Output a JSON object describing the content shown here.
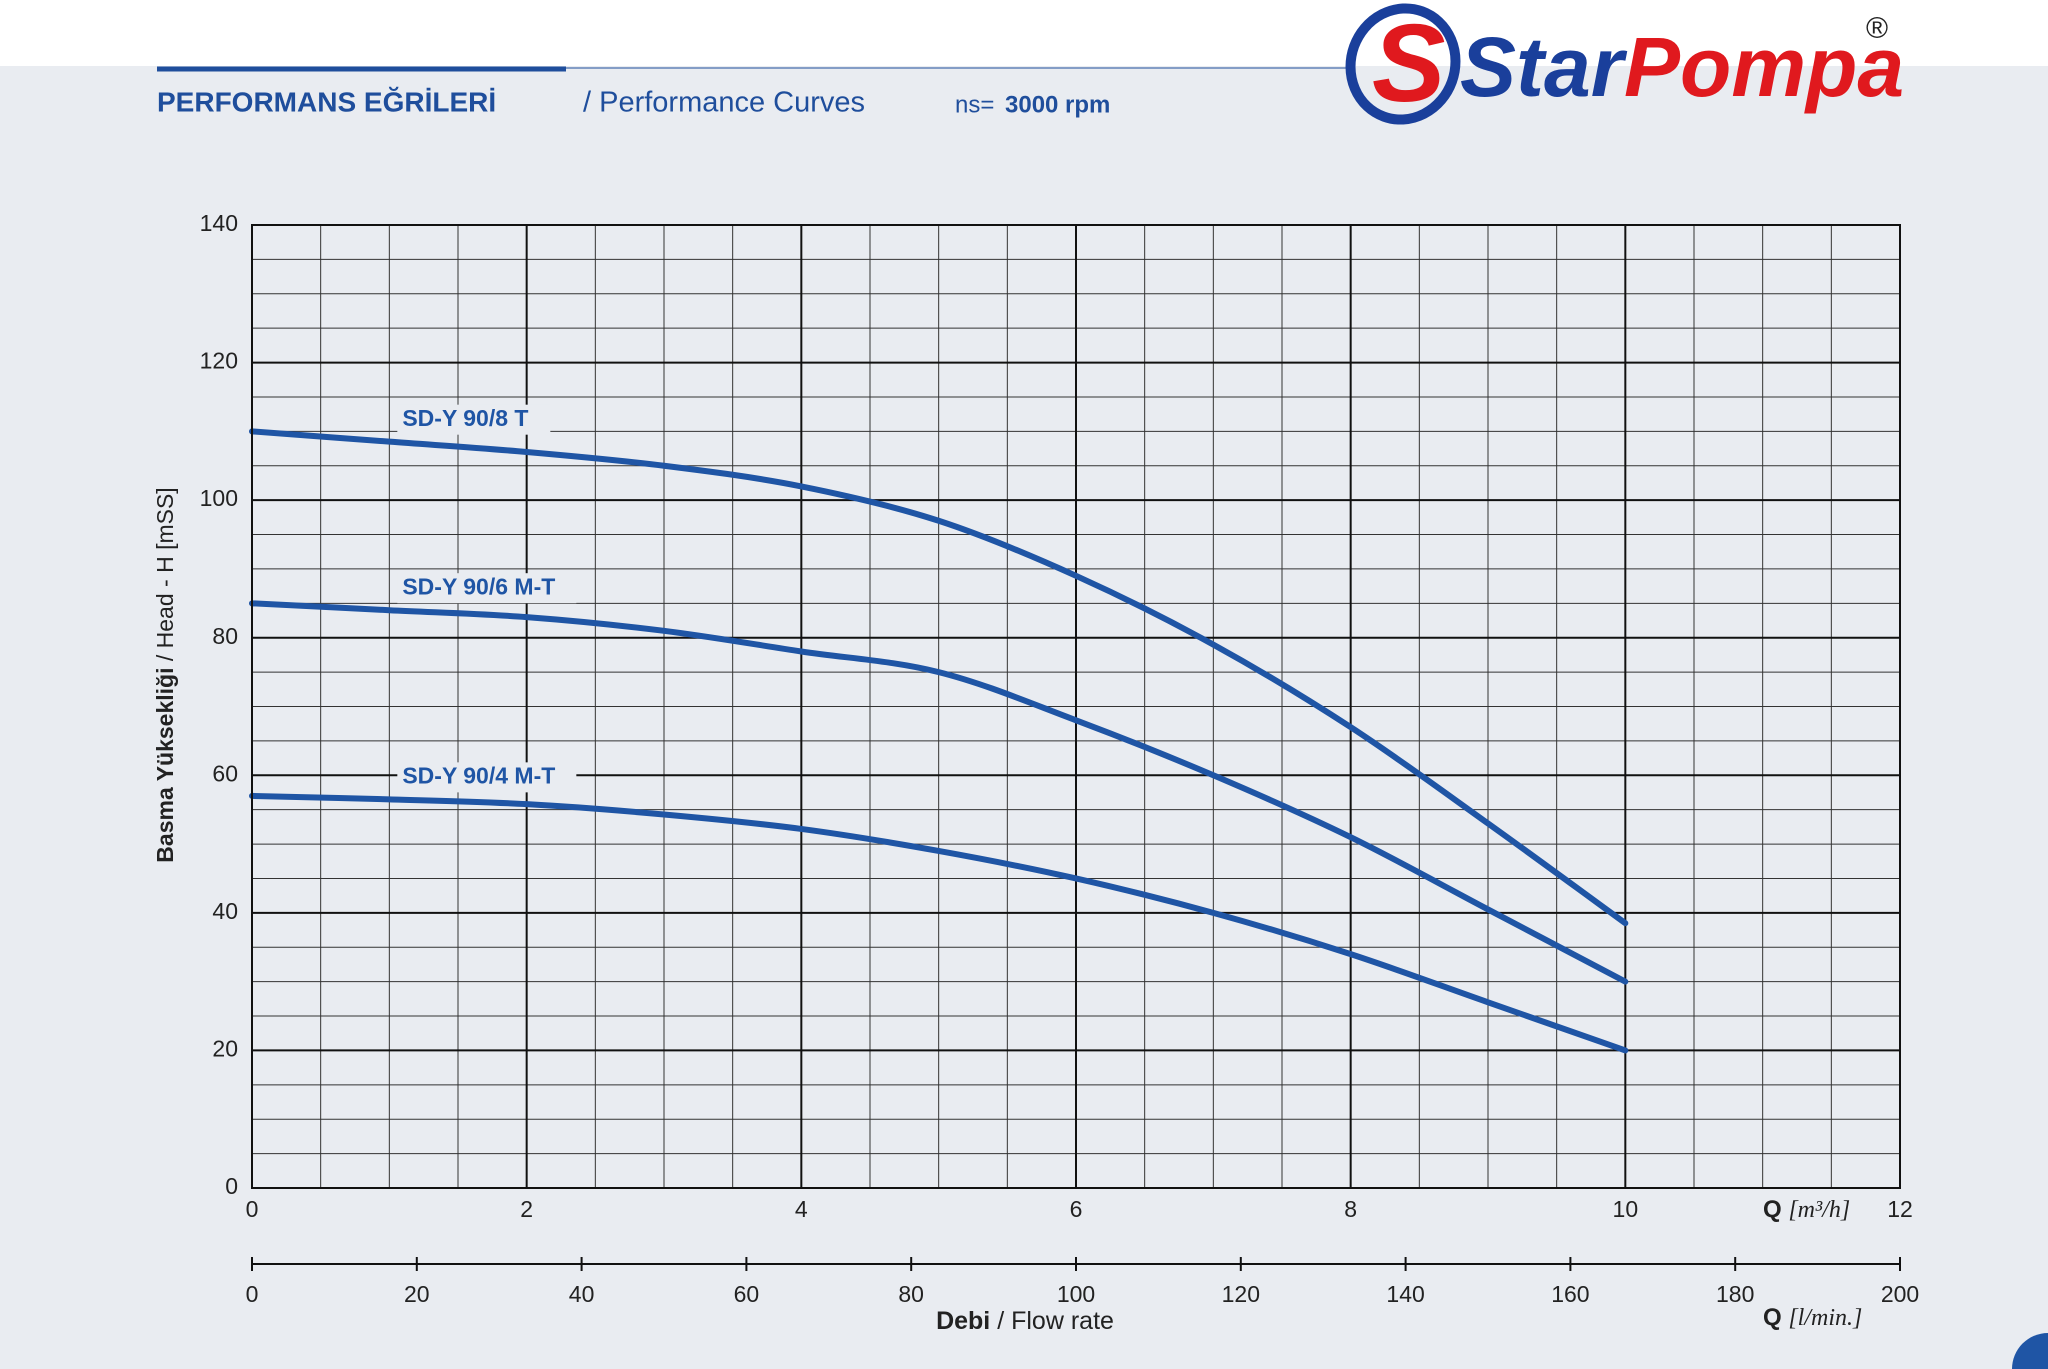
{
  "header": {
    "title": "PERFORMANS EĞRİLERİ",
    "subtitle": "/ Performance Curves",
    "speed_prefix": "ns=",
    "speed": "3000 rpm"
  },
  "logo": {
    "brand_1": "Star",
    "brand_2": "Pompa",
    "mark": "®"
  },
  "chart_data": {
    "type": "line",
    "y_label_bold": "Basma Yüksekliği",
    "y_label": "/ Head - H [mSS]",
    "x_label_symbol": "Q",
    "x_label_unit": "[m³/h]",
    "x2_label_bold": "Debi",
    "x2_label": "/ Flow rate",
    "x2_label_symbol": "Q",
    "x2_label_unit": "[l/min.]",
    "x": [
      0,
      1,
      2,
      3,
      4,
      5,
      6,
      7,
      8,
      9,
      10
    ],
    "series": [
      {
        "name": "SD-Y 90/8 T",
        "color": "#1f55a5",
        "values": [
          110,
          108.5,
          107,
          105,
          102,
          97,
          89,
          79,
          67,
          53,
          38.5
        ]
      },
      {
        "name": "SD-Y 90/6 M-T",
        "color": "#1f55a5",
        "values": [
          85,
          84,
          83,
          81,
          78,
          75,
          68,
          60,
          51,
          40.5,
          30
        ]
      },
      {
        "name": "SD-Y 90/4 M-T",
        "color": "#1f55a5",
        "values": [
          57,
          56.5,
          55.8,
          54.3,
          52.2,
          49,
          45,
          40,
          34,
          27,
          20
        ]
      }
    ],
    "xlim": [
      0,
      12
    ],
    "xticks": [
      0,
      2,
      4,
      6,
      8,
      10,
      12
    ],
    "ylim": [
      0,
      140
    ],
    "yticks": [
      0,
      20,
      40,
      60,
      80,
      100,
      120,
      140
    ],
    "x2lim": [
      0,
      200
    ],
    "x2ticks": [
      0,
      20,
      40,
      60,
      80,
      100,
      120,
      140,
      160,
      180,
      200
    ],
    "grid": true,
    "minor_grid": {
      "x": 0.5,
      "y": 5
    }
  }
}
